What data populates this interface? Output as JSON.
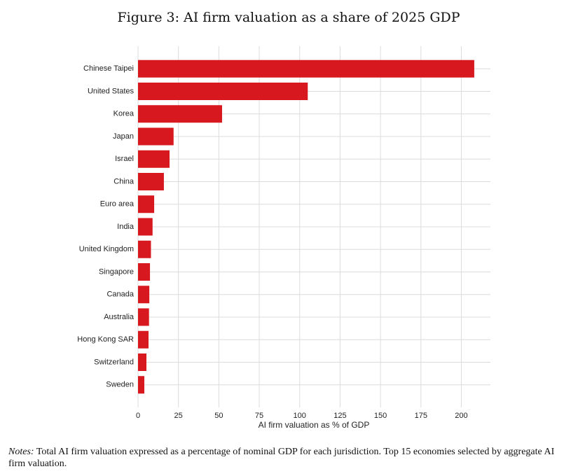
{
  "chart_data": {
    "type": "barh",
    "title": "Figure 3: AI firm valuation as a share of 2025 GDP",
    "xlabel": "AI firm valuation as % of GDP",
    "categories": [
      "Chinese Taipei",
      "United States",
      "Korea",
      "Japan",
      "Israel",
      "China",
      "Euro area",
      "India",
      "United Kingdom",
      "Singapore",
      "Canada",
      "Australia",
      "Hong Kong SAR",
      "Switzerland",
      "Sweden"
    ],
    "values": [
      208,
      105,
      52,
      22,
      19.5,
      16,
      10,
      9,
      8,
      7.4,
      7,
      6.8,
      6.5,
      5.2,
      3.9
    ],
    "color": "#d7191f",
    "xlim": [
      0,
      218
    ],
    "xticks": [
      0,
      25,
      50,
      75,
      100,
      125,
      150,
      175,
      200
    ],
    "grid": true
  },
  "notes": {
    "label": "Notes:",
    "text": "Total AI firm valuation expressed as a percentage of nominal GDP for each jurisdiction. Top 15 economies selected by aggregate AI firm valuation."
  }
}
